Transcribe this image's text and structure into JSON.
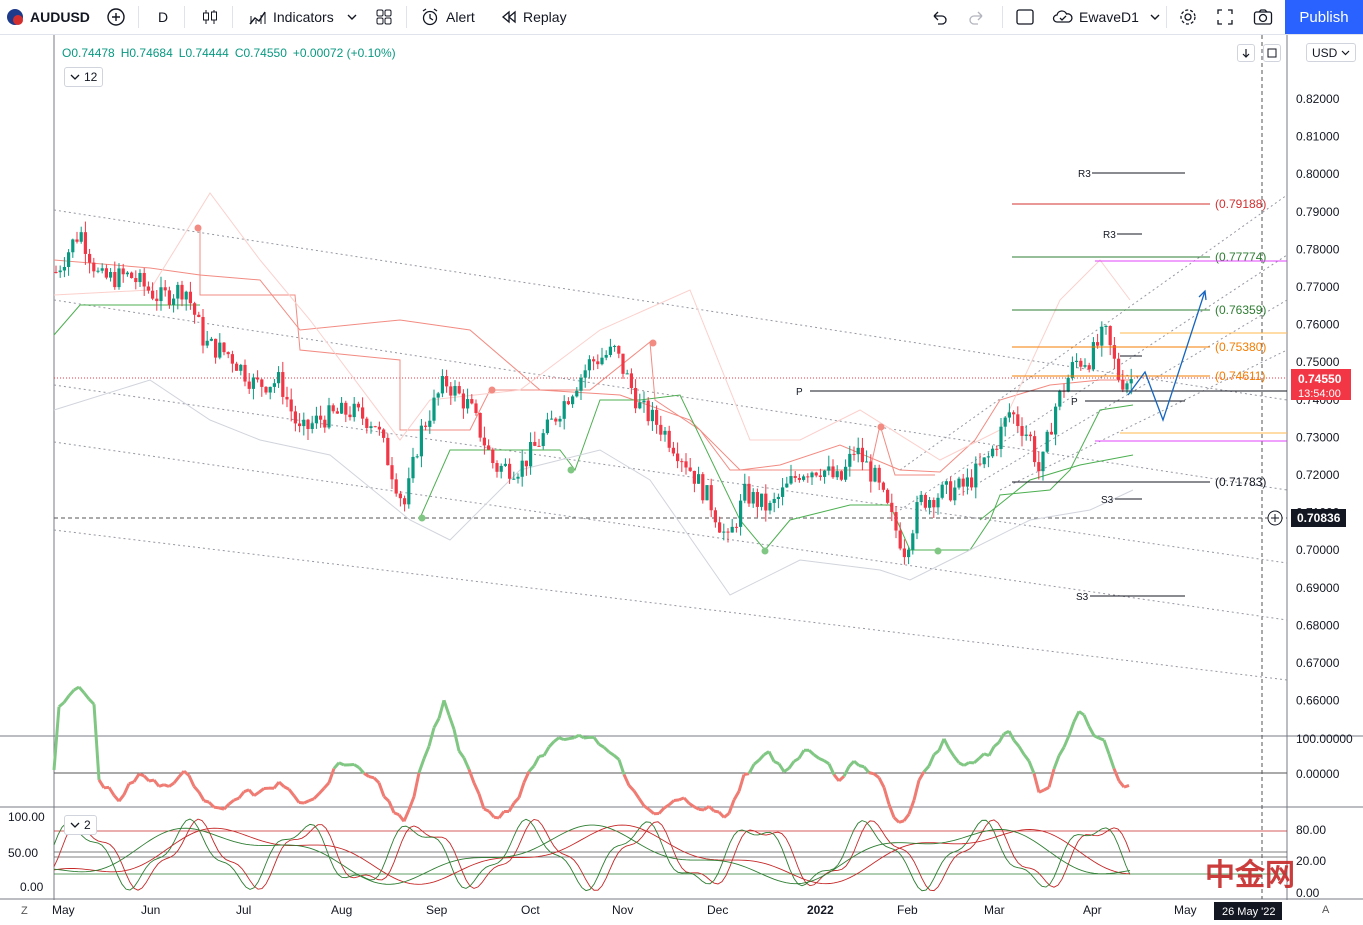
{
  "toolbar": {
    "symbol": "AUDUSD",
    "interval": "D",
    "indicators_label": "Indicators",
    "alert_label": "Alert",
    "replay_label": "Replay",
    "layout_name": "EwaveD1",
    "publish_label": "Publish"
  },
  "legend": {
    "open": "O0.74478",
    "high": "H0.74684",
    "low": "L0.74444",
    "close": "C0.74550",
    "change": "+0.00072 (+0.10%)",
    "indicator_count": "12"
  },
  "currency_selector": "USD",
  "price_axis": {
    "labels": [
      "0.82000",
      "0.81000",
      "0.80000",
      "0.79000",
      "0.78000",
      "0.77000",
      "0.76000",
      "0.75000",
      "0.74000",
      "0.73000",
      "0.72000",
      "0.71000",
      "0.70000",
      "0.69000",
      "0.68000",
      "0.67000",
      "0.66000"
    ],
    "current_price": "0.74550",
    "countdown": "13:54:00",
    "crosshair_price": "0.70836"
  },
  "time_axis": {
    "labels": [
      "May",
      "Jun",
      "Jul",
      "Aug",
      "Sep",
      "Oct",
      "Nov",
      "Dec",
      "2022",
      "Feb",
      "Mar",
      "Apr",
      "May"
    ],
    "crosshair_date": "26 May '22",
    "timezone_label": "Z",
    "auto_label": "A"
  },
  "fib_levels": [
    "(0.79188)",
    "(0.77774)",
    "(0.76359)",
    "(0.75380)",
    "(0.74611)",
    "(0.71783)"
  ],
  "pivot_labels": {
    "r3_a": "R3",
    "r3_b": "R3",
    "p_a": "P",
    "p_b": "P",
    "s3_a": "S3",
    "s3_b": "S3"
  },
  "osc1_axis": {
    "top": "100.00000",
    "zero": "0.00000"
  },
  "osc2_axis": {
    "left_100": "100.00",
    "left_50": "50.00",
    "left_0": "0.00",
    "right_80": "80.00",
    "right_20": "20.00",
    "right_0": "0.00",
    "indicator_count": "2"
  },
  "watermark": "中金网",
  "colors": {
    "bull": "#089981",
    "bear": "#f23645",
    "accent": "#2962ff",
    "price_label": "#f23645"
  },
  "chart_data": {
    "type": "candlestick",
    "symbol": "AUDUSD",
    "interval": "D",
    "ylim": [
      0.655,
      0.825
    ],
    "close_series_approx": [
      {
        "x": "2021-05",
        "y": 0.774
      },
      {
        "x": "2021-06",
        "y": 0.764
      },
      {
        "x": "2021-07",
        "y": 0.739
      },
      {
        "x": "2021-08",
        "y": 0.733
      },
      {
        "x": "2021-09",
        "y": 0.742
      },
      {
        "x": "2021-10",
        "y": 0.736
      },
      {
        "x": "2021-11",
        "y": 0.746
      },
      {
        "x": "2021-12",
        "y": 0.707
      },
      {
        "x": "2022-01",
        "y": 0.72
      },
      {
        "x": "2022-02",
        "y": 0.71
      },
      {
        "x": "2022-03",
        "y": 0.738
      },
      {
        "x": "2022-04",
        "y": 0.7455
      }
    ]
  }
}
